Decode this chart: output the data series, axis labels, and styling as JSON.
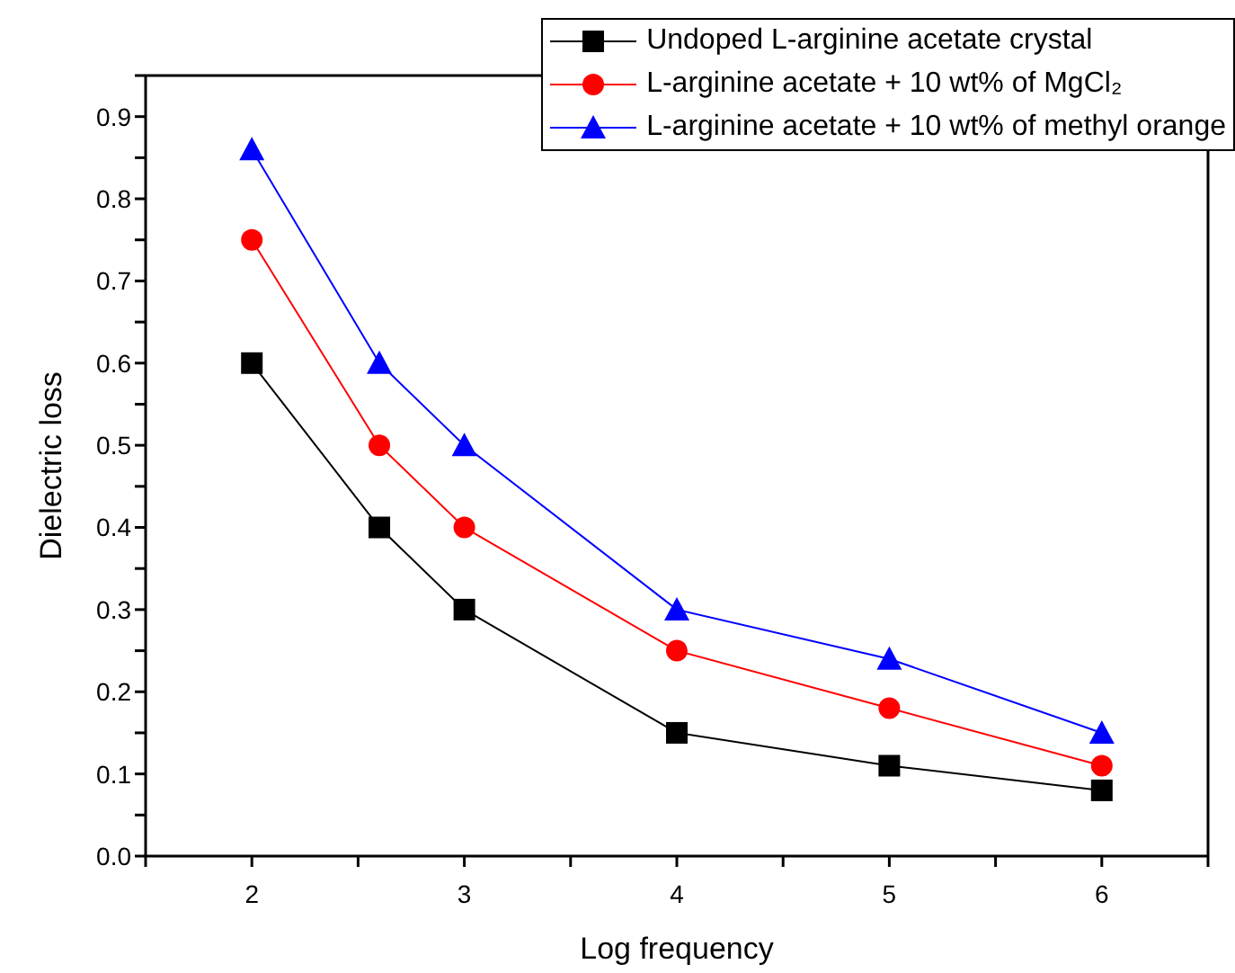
{
  "chart_data": {
    "type": "line",
    "xlabel": "Log frequency",
    "ylabel": "Dielectric loss",
    "x": [
      2,
      2.6,
      3,
      4,
      5,
      6
    ],
    "series": [
      {
        "name": "Undoped L-arginine acetate crystal",
        "color": "#000000",
        "marker": "square",
        "values": [
          0.6,
          0.4,
          0.3,
          0.15,
          0.11,
          0.08
        ]
      },
      {
        "name": "L-arginine acetate + 10 wt% of MgCl₂",
        "color": "#ff0000",
        "marker": "circle",
        "values": [
          0.75,
          0.5,
          0.4,
          0.25,
          0.18,
          0.11
        ]
      },
      {
        "name": "L-arginine acetate + 10 wt% of methyl orange",
        "color": "#0000ff",
        "marker": "triangle",
        "values": [
          0.86,
          0.6,
          0.5,
          0.3,
          0.24,
          0.15
        ]
      }
    ],
    "xlim": [
      1.5,
      6.5
    ],
    "xticks": [
      {
        "value": 1.5,
        "label": null
      },
      2,
      {
        "value": 2.5,
        "label": null
      },
      3,
      {
        "value": 3.5,
        "label": null
      },
      4,
      {
        "value": 4.5,
        "label": null
      },
      5,
      {
        "value": 5.5,
        "label": null
      },
      6,
      {
        "value": 6.5,
        "label": null
      }
    ],
    "ylim": [
      0,
      0.95
    ],
    "yticks": [
      {
        "value": 0,
        "label": "0.0"
      },
      {
        "value": 0.05,
        "label": null
      },
      0.1,
      {
        "value": 0.15,
        "label": null
      },
      0.2,
      {
        "value": 0.25,
        "label": null
      },
      0.3,
      {
        "value": 0.35,
        "label": null
      },
      0.4,
      {
        "value": 0.45,
        "label": null
      },
      0.5,
      {
        "value": 0.55,
        "label": null
      },
      0.6,
      {
        "value": 0.65,
        "label": null
      },
      0.7,
      {
        "value": 0.75,
        "label": null
      },
      0.8,
      {
        "value": 0.85,
        "label": null
      },
      0.9,
      {
        "value": 0.95,
        "label": null
      }
    ],
    "grid": false,
    "legend": "top right",
    "line_style": "solid"
  }
}
